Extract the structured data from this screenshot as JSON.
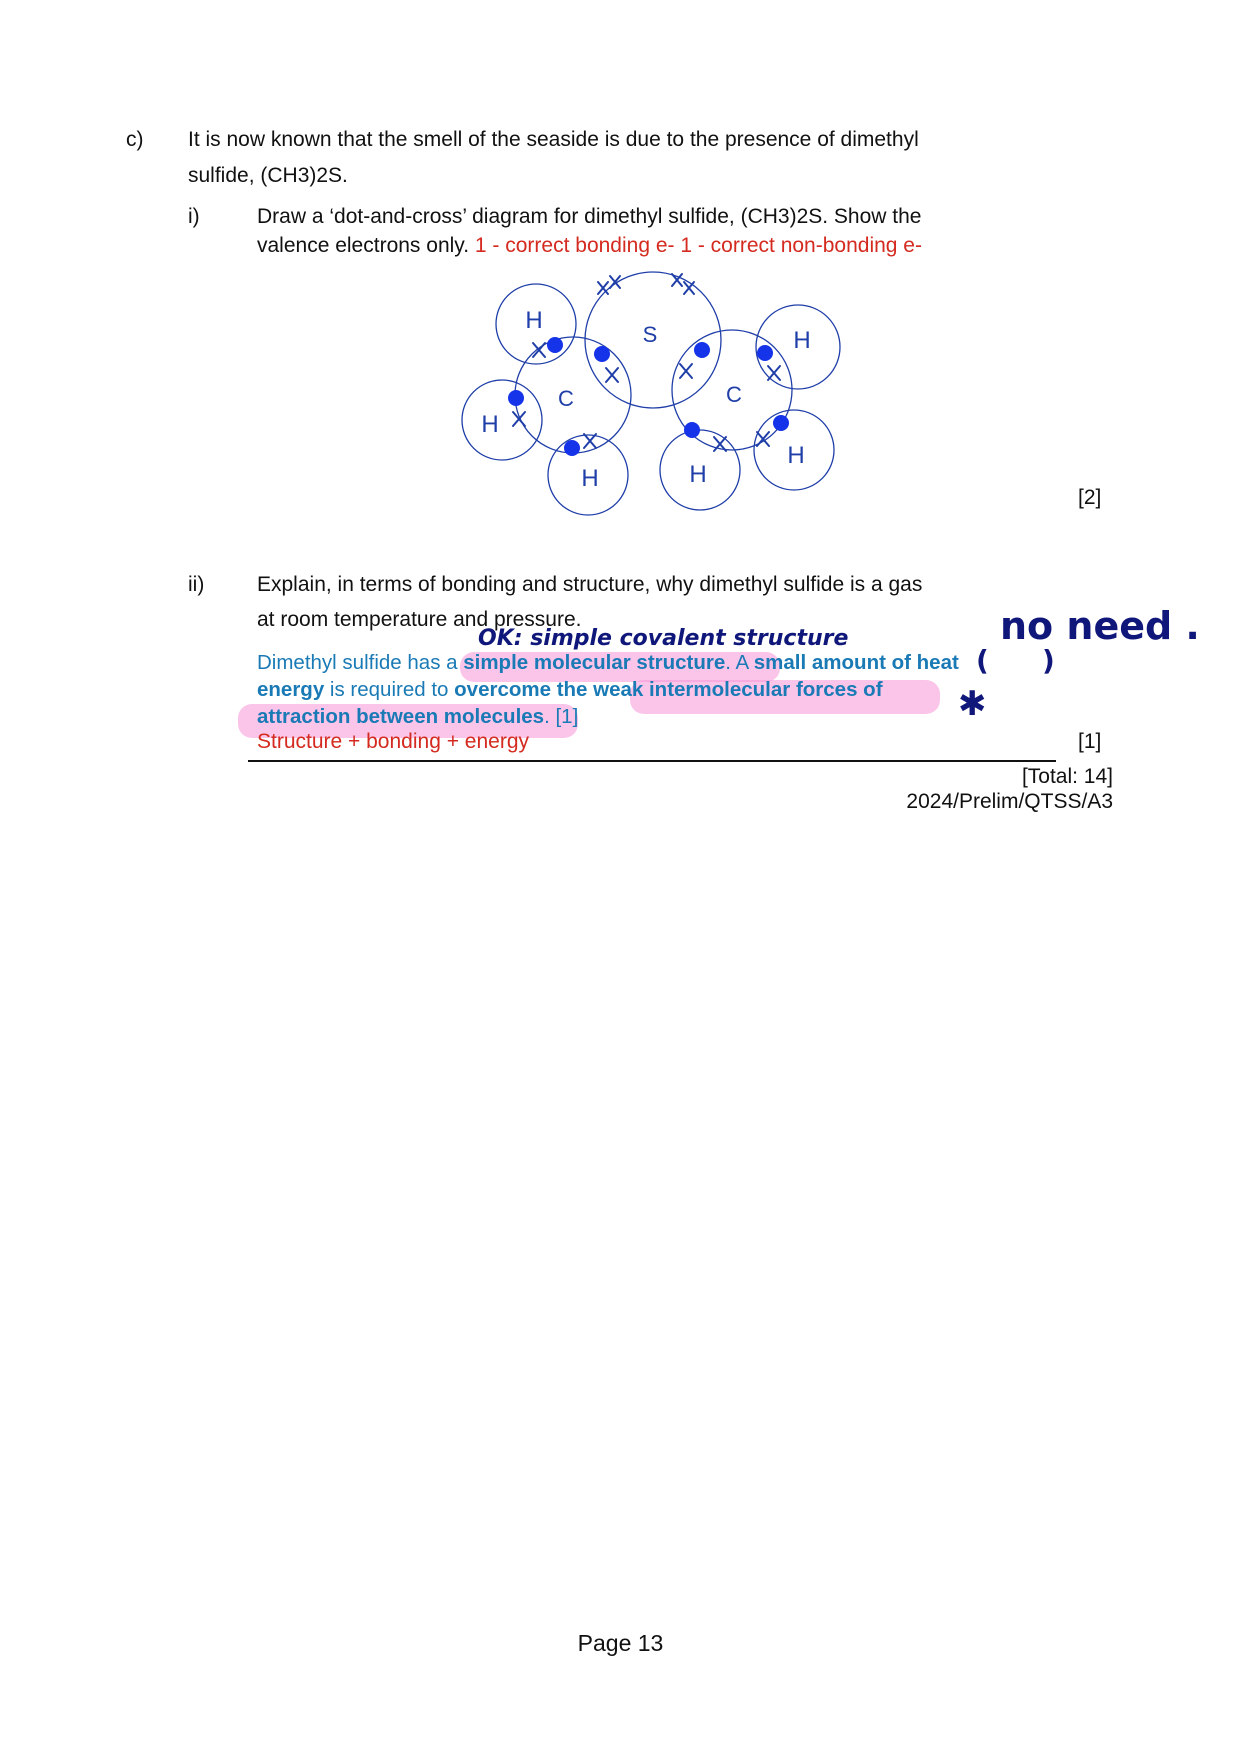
{
  "part_c": {
    "label": "c)",
    "text_line1": "It is now known that the smell of the seaside is due to the presence of dimethyl",
    "text_line2": "sulfide, (CH3)2S."
  },
  "part_i": {
    "label": "i)",
    "line1": "Draw a ‘dot-and-cross’ diagram for dimethyl sulfide, (CH3)2S. Show the",
    "line2": "valence electrons only.",
    "marking": "1 - correct bonding e- 1 - correct non-bonding e-",
    "marks": "[2]"
  },
  "diagram": {
    "atoms": [
      "H",
      "S",
      "H",
      "C",
      "C",
      "H",
      "H",
      "H",
      "H"
    ],
    "electron_colors": {
      "circle": "#1f3ea8",
      "dot": "#1533e8"
    }
  },
  "part_ii": {
    "label": "ii)",
    "line1": "Explain, in terms of bonding and structure, why dimethyl sulfide is a gas",
    "line2": "at room temperature and pressure.",
    "answer_a": "Dimethyl sulfide has a ",
    "answer_b": "simple molecular structure",
    "answer_c": ". A ",
    "answer_d": "small amount of heat",
    "answer_e": "energy",
    "answer_f": " is required to ",
    "answer_g": "overcome the weak intermolecular forces of",
    "answer_h": "attraction between molecules",
    "answer_i": ". [1]",
    "marking": "Structure + bonding + energy",
    "marks": "[1]"
  },
  "handwriting": {
    "note1": "OK: simple covalent structure",
    "note2": "no need .",
    "paren_open": "(",
    "paren_close": ")",
    "star": "✱"
  },
  "footer": {
    "total": "[Total: 14]",
    "code": "2024/Prelim/QTSS/A3",
    "page": "Page 13"
  }
}
